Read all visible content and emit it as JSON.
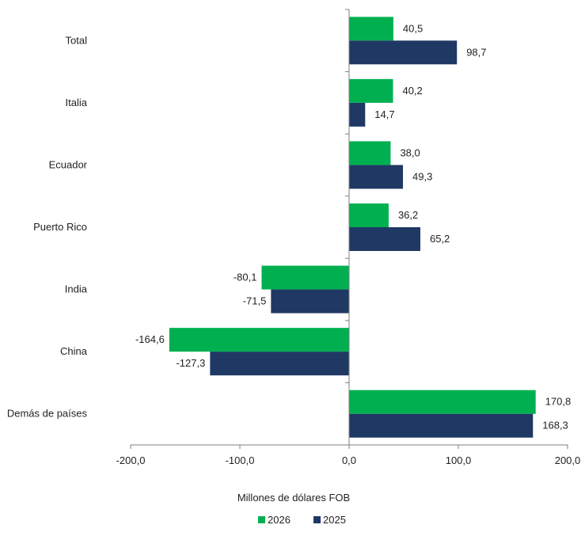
{
  "chart_data": {
    "type": "bar",
    "orientation": "horizontal",
    "categories": [
      "Total",
      "Italia",
      "Ecuador",
      "Puerto Rico",
      "India",
      "China",
      "Demás de países"
    ],
    "series": [
      {
        "name": "2026",
        "color": "#00b050",
        "values": [
          40.5,
          40.2,
          38.0,
          36.2,
          -80.1,
          -164.6,
          170.8
        ],
        "labels": [
          "40,5",
          "40,2",
          "38,0",
          "36,2",
          "-80,1",
          "-164,6",
          "170,8"
        ]
      },
      {
        "name": "2025",
        "color": "#1f3864",
        "values": [
          98.7,
          14.7,
          49.3,
          65.2,
          -71.5,
          -127.3,
          168.3
        ],
        "labels": [
          "98,7",
          "14,7",
          "49,3",
          "65,2",
          "-71,5",
          "-127,3",
          "168,3"
        ]
      }
    ],
    "xlim": [
      -200,
      200
    ],
    "xticks": [
      -200,
      -100,
      0,
      100,
      200
    ],
    "xtick_labels": [
      "-200,0",
      "-100,0",
      "0,0",
      "100,0",
      "200,0"
    ],
    "xlabel": "Millones de dólares FOB",
    "title": "",
    "grid": false,
    "legend": "bottom"
  }
}
